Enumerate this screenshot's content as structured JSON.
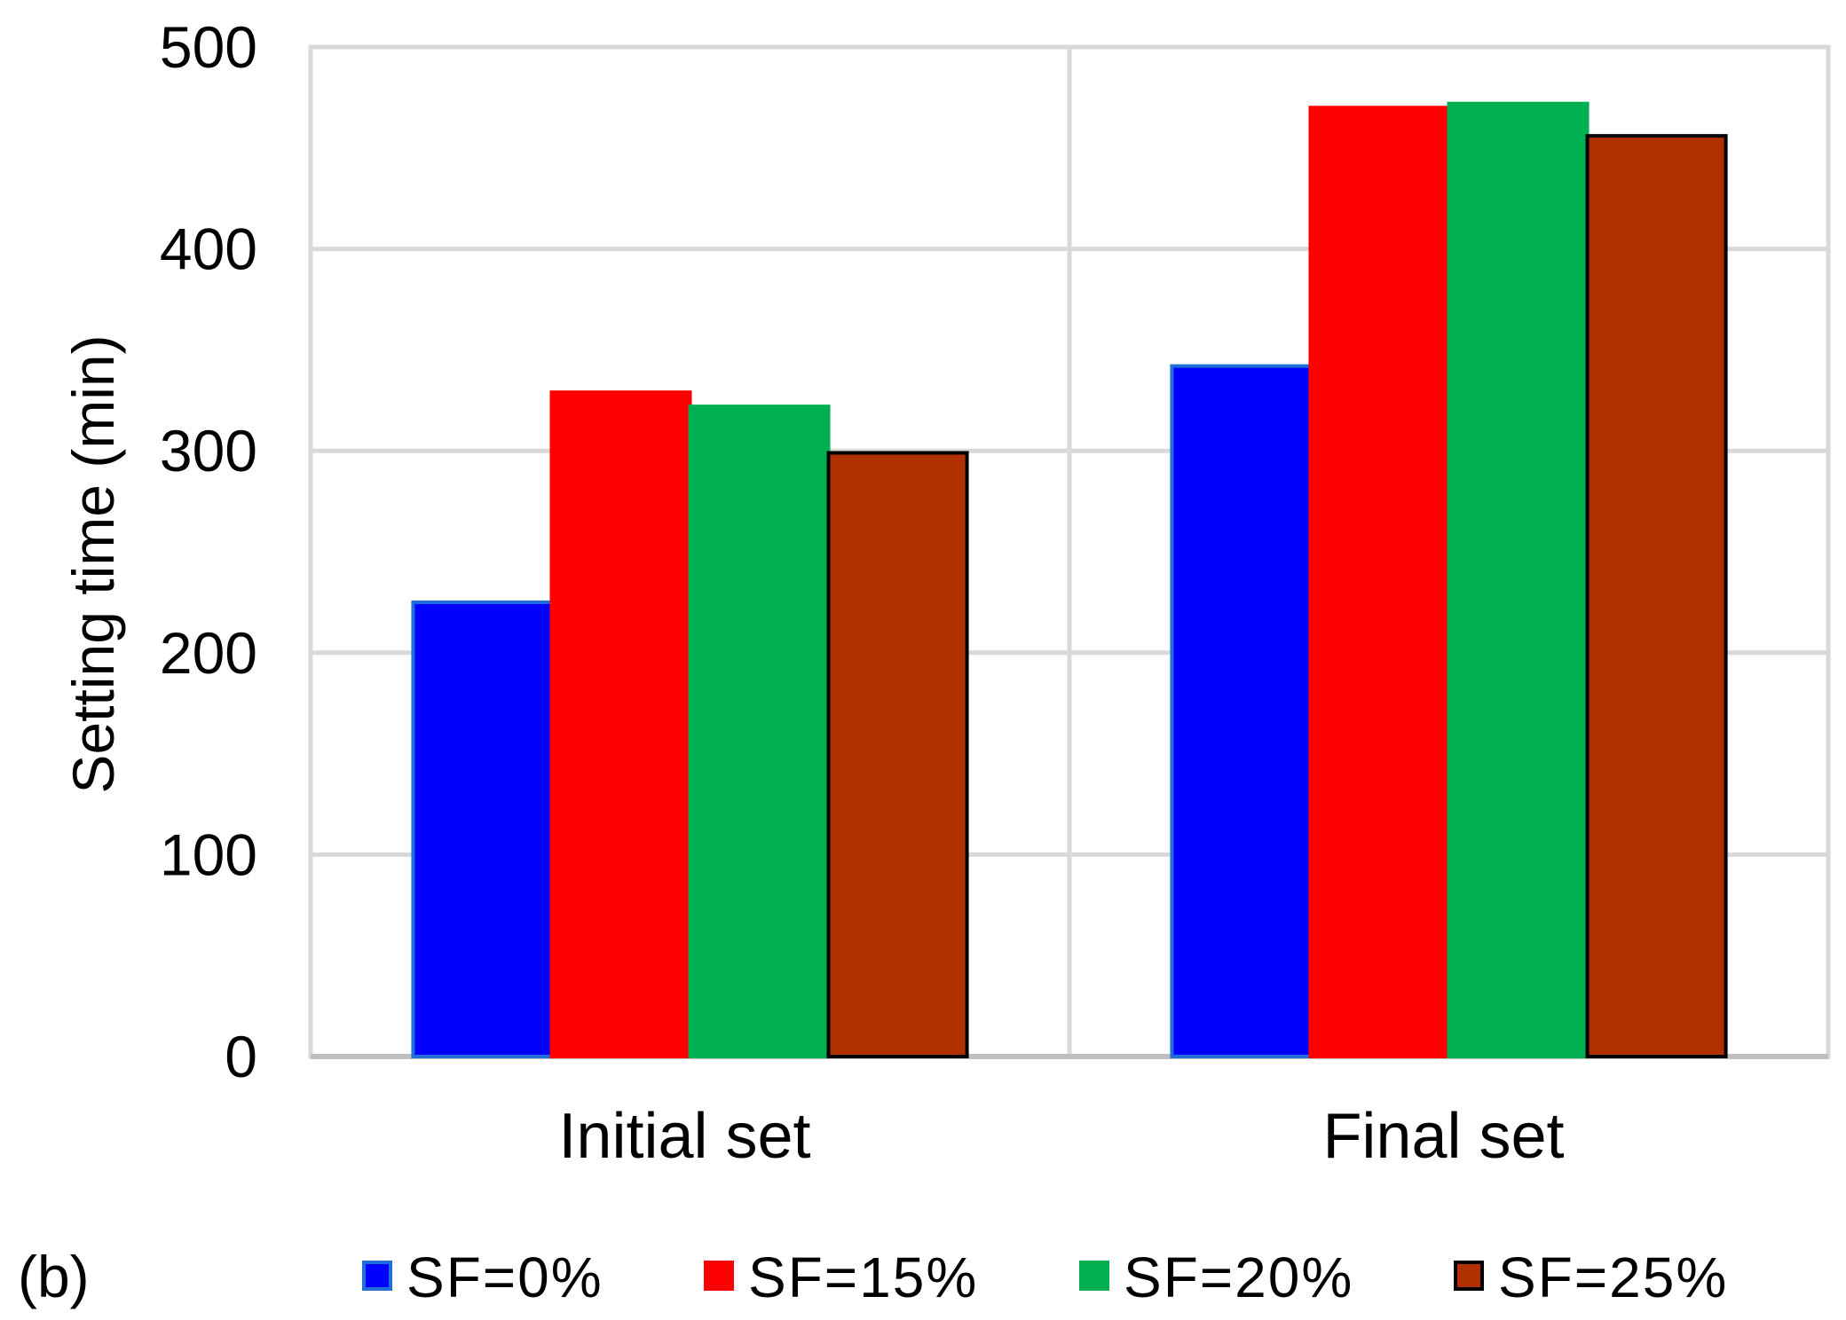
{
  "panel_label": "(b)",
  "colors": {
    "grid": "#d9d9d9",
    "axis": "#bfbfbf"
  },
  "chart_data": {
    "type": "bar",
    "categories": [
      "Initial set",
      "Final set"
    ],
    "series": [
      {
        "name": "SF=0%",
        "values": [
          225,
          342
        ],
        "color": "#0000ff",
        "edge": "#1f6fd8"
      },
      {
        "name": "SF=15%",
        "values": [
          329,
          470
        ],
        "color": "#ff0000",
        "edge": "#ff0000"
      },
      {
        "name": "SF=20%",
        "values": [
          322,
          472
        ],
        "color": "#00b050",
        "edge": "#00b050"
      },
      {
        "name": "SF=25%",
        "values": [
          299,
          456
        ],
        "color": "#b03000",
        "edge": "#000000"
      }
    ],
    "ylabel": "Setting time (min)",
    "xlabel": "",
    "title": "",
    "ylim": [
      0,
      500
    ],
    "yticks": [
      0,
      100,
      200,
      300,
      400,
      500
    ],
    "grid": true,
    "legend": "bottom"
  }
}
